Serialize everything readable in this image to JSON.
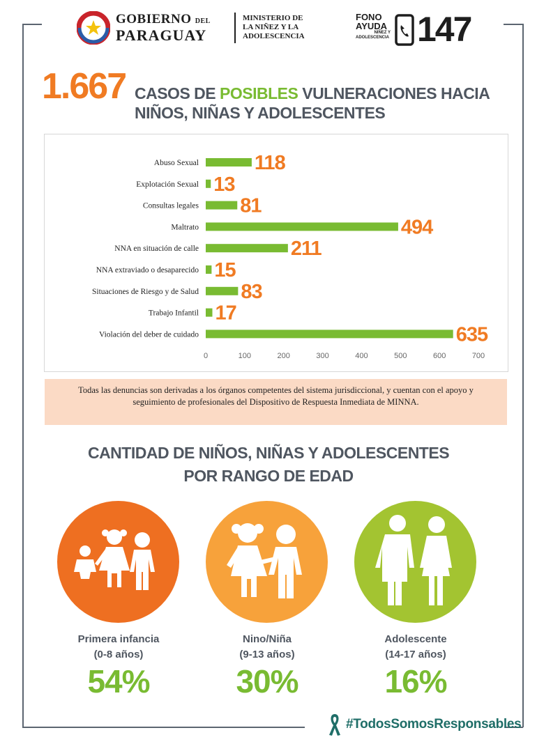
{
  "header": {
    "gobierno_line1": "GOBIERNO",
    "gobierno_del": "DEL",
    "gobierno_line2": "PARAGUAY",
    "ministerio_line1": "MINISTERIO DE",
    "ministerio_line2": "LA NIÑEZ Y LA",
    "ministerio_line3": "ADOLESCENCIA",
    "fono_line1": "FONO",
    "fono_line2": "AYUDA",
    "fono_line3": "NIÑEZ Y",
    "fono_line4": "ADOLESCENCIA",
    "fono_number": "147"
  },
  "headline": {
    "total": "1.667",
    "part1": "CASOS DE ",
    "part2": "POSIBLES",
    "part3": " VULNERACIONES HACIA",
    "line2": "NIÑOS, NIÑAS Y ADOLESCENTES"
  },
  "chart_data": {
    "type": "bar",
    "orientation": "horizontal",
    "categories": [
      "Abuso Sexual",
      "Explotación Sexual",
      "Consultas legales",
      "Maltrato",
      "NNA en situación de calle",
      "NNA extraviado o desaparecido",
      "Situaciones de Riesgo y de Salud",
      "Trabajo Infantil",
      "Violación del deber de cuidado"
    ],
    "values": [
      118,
      13,
      81,
      494,
      211,
      15,
      83,
      17,
      635
    ],
    "xlim": [
      0,
      700
    ],
    "xticks": [
      0,
      100,
      200,
      300,
      400,
      500,
      600,
      700
    ],
    "bar_color": "#79bb32",
    "label_color": "#f07b23",
    "grid": false
  },
  "note": {
    "text": "Todas las denuncias son derivadas a los órganos competentes del sistema jurisdiccional, y cuentan con el apoyo y seguimiento de profesionales del Dispositivo de Respuesta Inmediata de MINNA."
  },
  "age_section": {
    "title_line1": "CANTIDAD DE NIÑOS, NIÑAS Y ADOLESCENTES",
    "title_line2": "POR RANGO DE EDAD",
    "groups": [
      {
        "label": "Primera infancia",
        "range": "(0-8 años)",
        "percent": "54%",
        "color": "#ee6f21"
      },
      {
        "label": "Nino/Niña",
        "range": "(9-13 años)",
        "percent": "30%",
        "color": "#f7a23b"
      },
      {
        "label": "Adolescente",
        "range": "(14-17 años)",
        "percent": "16%",
        "color": "#a3c431"
      }
    ]
  },
  "footer": {
    "hashtag": "#TodosSomosResponsables"
  },
  "colors": {
    "orange": "#f07b23",
    "green": "#79bb32",
    "gray_text": "#4f5660",
    "note_bg": "#fbdac5",
    "ribbon": "#1f6e68"
  }
}
